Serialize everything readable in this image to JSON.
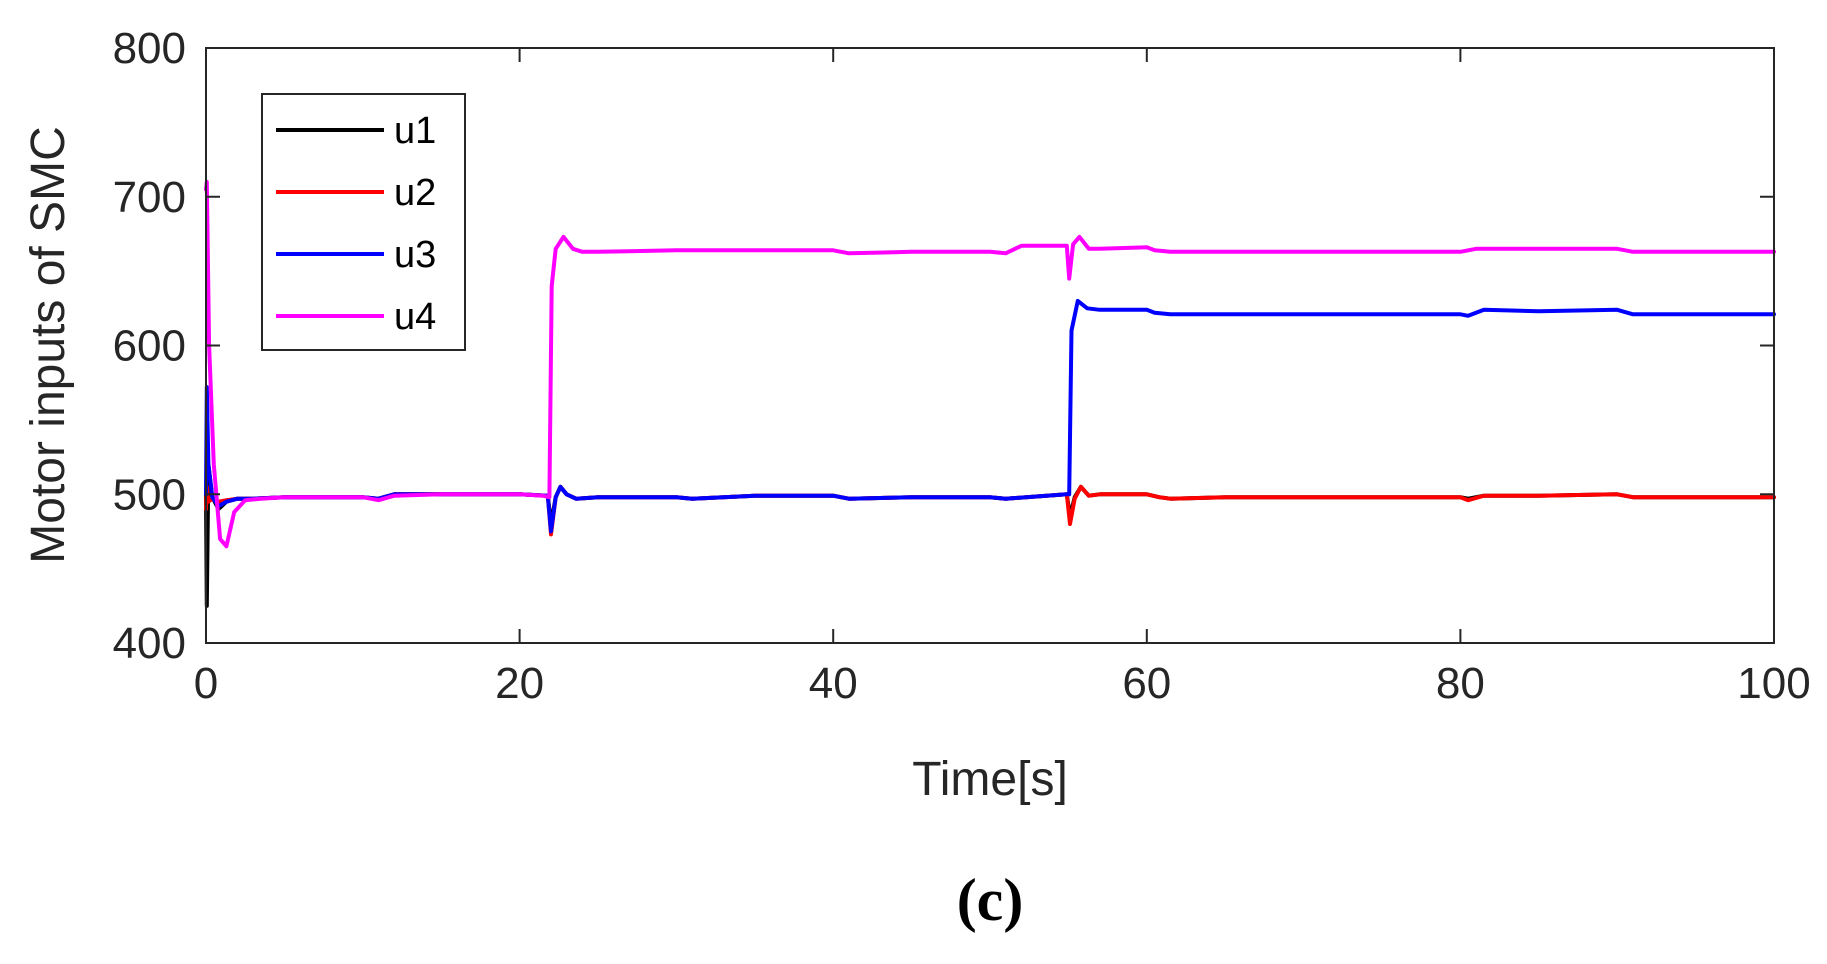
{
  "panel_label": "(c)",
  "chart_data": {
    "type": "line",
    "xlabel": "Time[s]",
    "ylabel": "Motor inputs of SMC",
    "xlim": [
      0,
      100
    ],
    "ylim": [
      400,
      800
    ],
    "xticks": [
      0,
      20,
      40,
      60,
      80,
      100
    ],
    "yticks": [
      400,
      500,
      600,
      700,
      800
    ],
    "grid": false,
    "legend_position": "top-left",
    "series": [
      {
        "name": "u1",
        "color": "#000000",
        "x": [
          0,
          0.05,
          0.15,
          0.4,
          0.8,
          1.3,
          2,
          3,
          5,
          10,
          11,
          12,
          15,
          20,
          21.8,
          22,
          22.3,
          22.6,
          23,
          23.6,
          25,
          30,
          31,
          35,
          40,
          41,
          45,
          50,
          51,
          54.9,
          55.1,
          55.4,
          55.8,
          56.3,
          57,
          60,
          60.8,
          61.5,
          65,
          70,
          80,
          80.5,
          81.5,
          85,
          90,
          91,
          95,
          100
        ],
        "y": [
          500,
          425,
          520,
          498,
          490,
          495,
          497,
          497,
          498,
          498,
          497,
          500,
          500,
          500,
          499,
          480,
          498,
          505,
          500,
          497,
          498,
          498,
          497,
          499,
          499,
          497,
          498,
          498,
          497,
          500,
          485,
          498,
          505,
          499,
          500,
          500,
          498,
          497,
          498,
          498,
          498,
          497,
          499,
          499,
          500,
          498,
          498,
          498
        ]
      },
      {
        "name": "u2",
        "color": "#ff0000",
        "x": [
          0,
          0.05,
          0.15,
          0.4,
          0.8,
          1.3,
          2,
          3,
          5,
          10,
          11,
          12,
          15,
          20,
          21.8,
          22,
          22.3,
          22.6,
          23,
          23.6,
          25,
          30,
          31,
          35,
          40,
          41,
          45,
          50,
          51,
          54.9,
          55.1,
          55.4,
          55.8,
          56.3,
          57,
          60,
          60.8,
          61.5,
          65,
          70,
          80,
          80.5,
          81.5,
          85,
          90,
          91,
          95,
          100
        ],
        "y": [
          490,
          505,
          495,
          497,
          495,
          496,
          497,
          497,
          498,
          498,
          497,
          500,
          500,
          500,
          499,
          473,
          498,
          505,
          500,
          497,
          498,
          498,
          497,
          499,
          499,
          497,
          498,
          498,
          497,
          500,
          480,
          497,
          505,
          499,
          500,
          500,
          498,
          497,
          498,
          498,
          498,
          496,
          499,
          499,
          500,
          498,
          498,
          498
        ]
      },
      {
        "name": "u3",
        "color": "#0000ff",
        "x": [
          0,
          0.05,
          0.15,
          0.4,
          0.8,
          1.3,
          2,
          3,
          5,
          10,
          11,
          12,
          15,
          20,
          21.8,
          22,
          22.3,
          22.6,
          23,
          23.6,
          25,
          30,
          31,
          35,
          40,
          41,
          45,
          50,
          51,
          54.9,
          55.05,
          55.2,
          55.6,
          56.2,
          57,
          60,
          60.5,
          61.5,
          65,
          70,
          80,
          80.5,
          81.5,
          85,
          90,
          91,
          95,
          100
        ],
        "y": [
          500,
          572,
          520,
          498,
          492,
          495,
          497,
          497,
          498,
          498,
          497,
          500,
          500,
          500,
          499,
          475,
          498,
          505,
          500,
          497,
          498,
          498,
          497,
          499,
          499,
          497,
          498,
          498,
          497,
          500,
          500,
          610,
          630,
          625,
          624,
          624,
          622,
          621,
          621,
          621,
          621,
          620,
          624,
          623,
          624,
          621,
          621,
          621
        ]
      },
      {
        "name": "u4",
        "color": "#ff00ff",
        "x": [
          0,
          0.05,
          0.2,
          0.5,
          0.9,
          1.3,
          1.8,
          2.5,
          3.5,
          5,
          10,
          11,
          12,
          15,
          20,
          21.5,
          21.9,
          22.05,
          22.3,
          22.8,
          23.4,
          24,
          25,
          30,
          35,
          40,
          41,
          45,
          50,
          51,
          52,
          54.9,
          55.05,
          55.3,
          55.7,
          56.3,
          57,
          60,
          60.5,
          61.5,
          65,
          70,
          80,
          81,
          85,
          90,
          91,
          95,
          100
        ],
        "y": [
          705,
          710,
          600,
          520,
          470,
          465,
          488,
          496,
          497,
          498,
          498,
          496,
          499,
          500,
          500,
          499,
          498,
          640,
          665,
          673,
          665,
          663,
          663,
          664,
          664,
          664,
          662,
          663,
          663,
          662,
          667,
          667,
          645,
          668,
          673,
          665,
          665,
          666,
          664,
          663,
          663,
          663,
          663,
          665,
          665,
          665,
          663,
          663,
          663
        ]
      }
    ]
  }
}
